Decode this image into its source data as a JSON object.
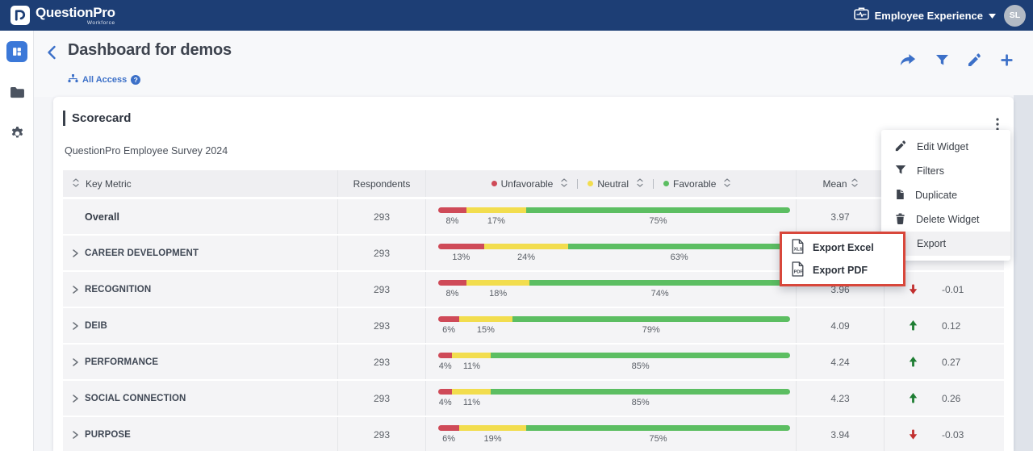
{
  "topbar": {
    "brand": "QuestionPro",
    "brand_sub": "Workforce",
    "workspace_label": "Employee Experience",
    "avatar_initials": "SL"
  },
  "page": {
    "title": "Dashboard for demos",
    "access_label": "All Access",
    "help_glyph": "?"
  },
  "widget": {
    "title": "Scorecard",
    "subtitle": "QuestionPro Employee Survey 2024"
  },
  "menu": {
    "items": [
      "Edit Widget",
      "Filters",
      "Duplicate",
      "Delete Widget",
      "Export"
    ],
    "highlighted_item": "Export",
    "submenu": [
      {
        "label": "Export Excel",
        "badge": "XLS",
        "icon": "xls-file-icon"
      },
      {
        "label": "Export PDF",
        "badge": "PDF",
        "icon": "pdf-file-icon"
      }
    ]
  },
  "table": {
    "columns": {
      "key_metric": "Key Metric",
      "respondents": "Respondents",
      "mean": "Mean"
    },
    "legend": [
      {
        "label": "Unfavorable",
        "color": "#cf4a58"
      },
      {
        "label": "Neutral",
        "color": "#f2dd4e"
      },
      {
        "label": "Favorable",
        "color": "#5cbe62"
      }
    ],
    "rows": [
      {
        "name": "Overall",
        "expandable": false,
        "respondents": "293",
        "unfavorable": 8,
        "neutral": 17,
        "favorable": 75,
        "mean": "3.97",
        "change": "",
        "direction": ""
      },
      {
        "name": "CAREER DEVELOPMENT",
        "expandable": true,
        "respondents": "293",
        "unfavorable": 13,
        "neutral": 24,
        "favorable": 63,
        "mean": "",
        "change": "",
        "direction": ""
      },
      {
        "name": "RECOGNITION",
        "expandable": true,
        "respondents": "293",
        "unfavorable": 8,
        "neutral": 18,
        "favorable": 74,
        "mean": "3.96",
        "change": "-0.01",
        "direction": "down"
      },
      {
        "name": "DEIB",
        "expandable": true,
        "respondents": "293",
        "unfavorable": 6,
        "neutral": 15,
        "favorable": 79,
        "mean": "4.09",
        "change": "0.12",
        "direction": "up"
      },
      {
        "name": "PERFORMANCE",
        "expandable": true,
        "respondents": "293",
        "unfavorable": 4,
        "neutral": 11,
        "favorable": 85,
        "mean": "4.24",
        "change": "0.27",
        "direction": "up"
      },
      {
        "name": "SOCIAL CONNECTION",
        "expandable": true,
        "respondents": "293",
        "unfavorable": 4,
        "neutral": 11,
        "favorable": 85,
        "mean": "4.23",
        "change": "0.26",
        "direction": "up"
      },
      {
        "name": "PURPOSE",
        "expandable": true,
        "respondents": "293",
        "unfavorable": 6,
        "neutral": 19,
        "favorable": 75,
        "mean": "3.94",
        "change": "-0.03",
        "direction": "down"
      }
    ]
  },
  "colors": {
    "navbar": "#1d3e75",
    "accent_blue": "#3c70c8",
    "unfavorable": "#cf4a58",
    "neutral": "#f2dd4e",
    "favorable": "#5cbe62",
    "up": "#1e7d33",
    "down": "#c22f2f",
    "highlight_border": "#d8473b"
  },
  "icons": [
    "questionpro-logo-icon",
    "briefcase-pulse-icon",
    "caret-down-icon",
    "dashboard-grid-icon",
    "folder-icon",
    "gear-icon",
    "back-chevron-icon",
    "sitemap-icon",
    "help-icon",
    "share-icon",
    "filter-icon",
    "pencil-icon",
    "plus-icon",
    "kebab-icon",
    "sort-icon",
    "expand-chevron-icon",
    "trash-icon",
    "duplicate-icon",
    "xls-file-icon",
    "pdf-file-icon",
    "arrow-up-icon",
    "arrow-down-icon"
  ]
}
